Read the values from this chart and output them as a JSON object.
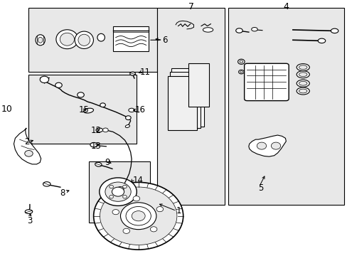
{
  "bg_color": "#ffffff",
  "fig_width": 4.89,
  "fig_height": 3.6,
  "dpi": 100,
  "line_color": "#000000",
  "text_color": "#000000",
  "box_fill": "#e8e8e8",
  "label_fontsize": 8.5,
  "boxes": {
    "seal_kit": [
      0.06,
      0.72,
      0.44,
      0.97
    ],
    "hose": [
      0.06,
      0.44,
      0.38,
      0.71
    ],
    "hub": [
      0.24,
      0.13,
      0.42,
      0.37
    ],
    "pads": [
      0.44,
      0.2,
      0.64,
      0.97
    ],
    "caliper": [
      0.65,
      0.2,
      0.99,
      0.97
    ]
  },
  "labels": {
    "1": [
      0.495,
      0.175,
      "left"
    ],
    "2": [
      0.065,
      0.445,
      "right"
    ],
    "3": [
      0.065,
      0.135,
      "center"
    ],
    "4": [
      0.82,
      0.975,
      "center"
    ],
    "5": [
      0.738,
      0.265,
      "left"
    ],
    "6": [
      0.455,
      0.845,
      "left"
    ],
    "7": [
      0.54,
      0.975,
      "center"
    ],
    "8": [
      0.17,
      0.245,
      "right"
    ],
    "9": [
      0.285,
      0.365,
      "left"
    ],
    "10": [
      0.015,
      0.575,
      "right"
    ],
    "11": [
      0.39,
      0.72,
      "left"
    ],
    "12": [
      0.245,
      0.49,
      "left"
    ],
    "13": [
      0.245,
      0.43,
      "left"
    ],
    "14": [
      0.368,
      0.295,
      "left"
    ],
    "15": [
      0.21,
      0.57,
      "left"
    ],
    "16": [
      0.375,
      0.57,
      "left"
    ]
  }
}
